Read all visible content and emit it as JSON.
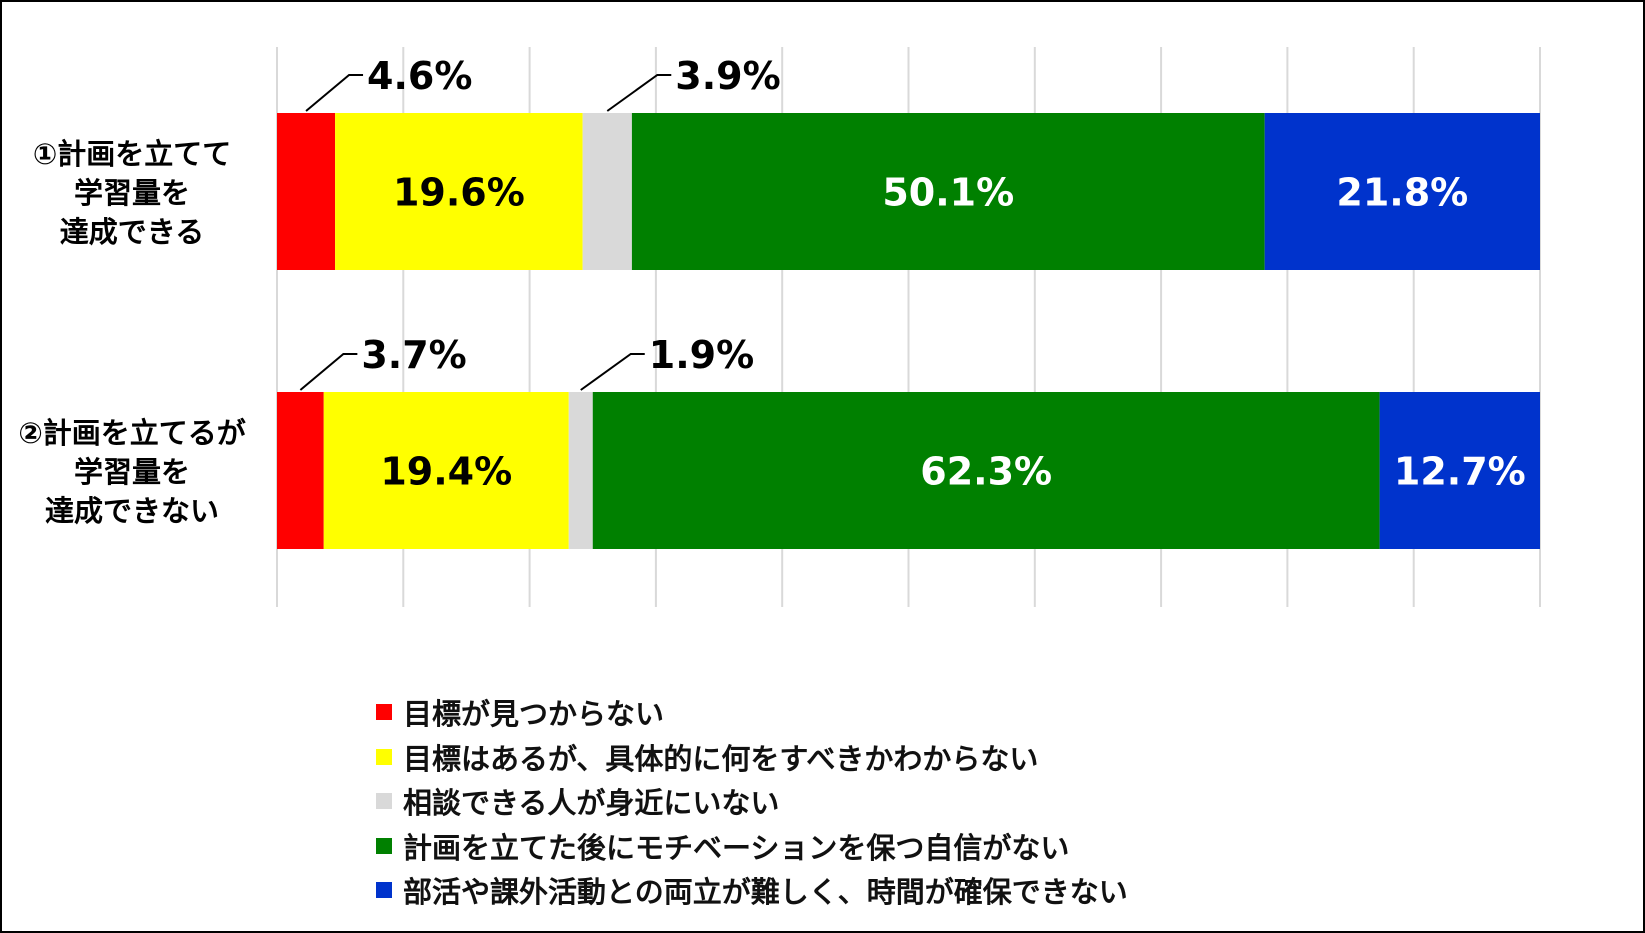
{
  "chart_data": {
    "type": "bar",
    "orientation": "horizontal",
    "stacked": true,
    "percent_stacked": true,
    "grid": true,
    "legend_position": "bottom",
    "categories": [
      [
        "①計画を立てて",
        "学習量を",
        "達成できる"
      ],
      [
        "②計画を立てるが",
        "学習量を",
        "達成できない"
      ]
    ],
    "series": [
      {
        "name": "目標が見つからない",
        "color": "#ff0000",
        "values": [
          4.6,
          3.7
        ],
        "labels": [
          "4.6%",
          "3.7%"
        ]
      },
      {
        "name": "目標はあるが、具体的に何をすべきかわからない",
        "color": "#ffff00",
        "values": [
          19.6,
          19.4
        ],
        "labels": [
          "19.6%",
          "19.4%"
        ]
      },
      {
        "name": "相談できる人が身近にいない",
        "color": "#d9d9d9",
        "values": [
          3.9,
          1.9
        ],
        "labels": [
          "3.9%",
          "1.9%"
        ]
      },
      {
        "name": "計画を立てた後にモチベーションを保つ自信がない",
        "color": "#008000",
        "values": [
          50.1,
          62.3
        ],
        "labels": [
          "50.1%",
          "62.3%"
        ]
      },
      {
        "name": "部活や課外活動との両立が難しく、時間が確保できない",
        "color": "#0033cc",
        "values": [
          21.8,
          12.7
        ],
        "labels": [
          "21.8%",
          "12.7%"
        ]
      }
    ],
    "label_colors": [
      "#000000",
      "#000000",
      "#000000",
      "#ffffff",
      "#ffffff"
    ],
    "gridline_color": "#d9d9d9"
  }
}
